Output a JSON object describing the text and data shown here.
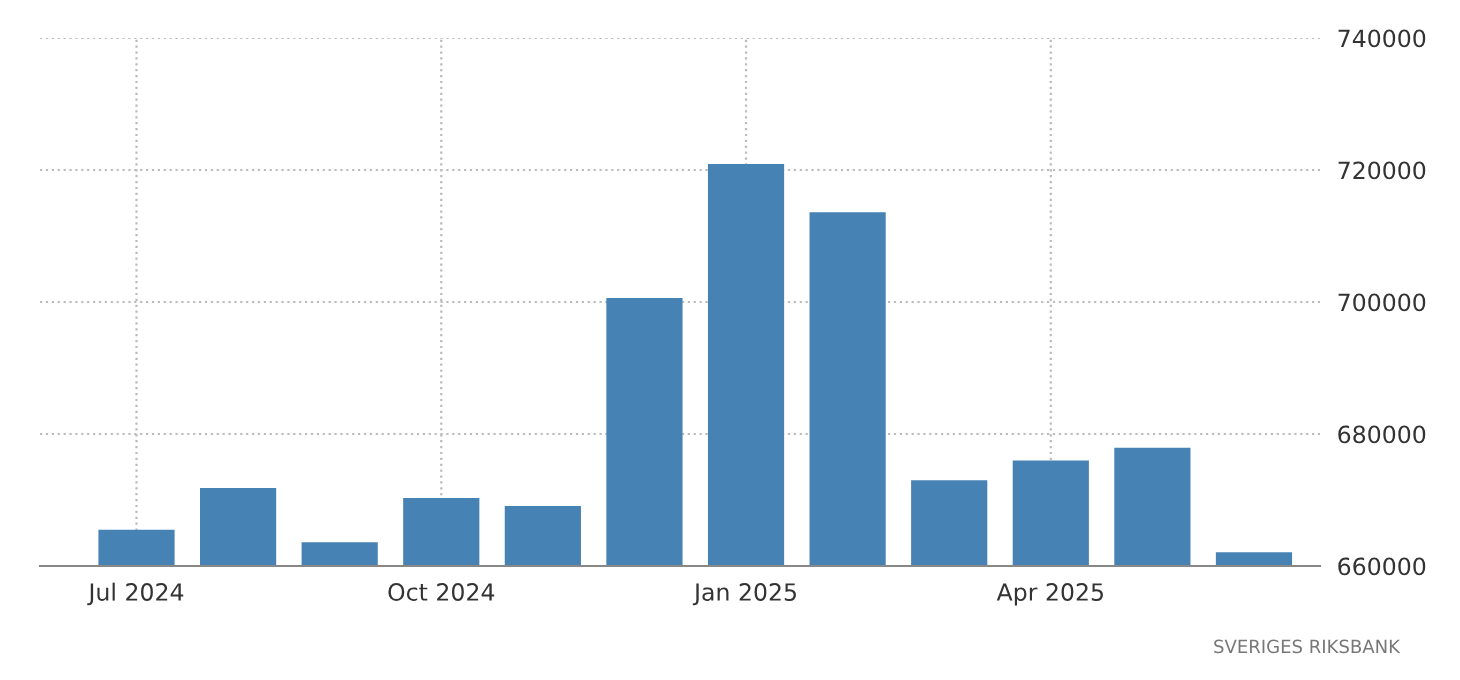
{
  "chart_data": {
    "type": "bar",
    "categories": [
      "Jul 2024",
      null,
      null,
      "Oct 2024",
      null,
      null,
      "Jan 2025",
      null,
      null,
      "Apr 2025",
      null,
      null
    ],
    "values": [
      665500,
      671800,
      663600,
      670300,
      669100,
      700600,
      720900,
      713600,
      673000,
      676000,
      677900,
      662100
    ],
    "color": "#4682b4",
    "ylim": [
      660000,
      740000
    ],
    "yticks": [
      660000,
      680000,
      700000,
      720000,
      740000
    ],
    "grid": true,
    "annotations": [
      "SVERIGES RIKSBANK"
    ]
  }
}
